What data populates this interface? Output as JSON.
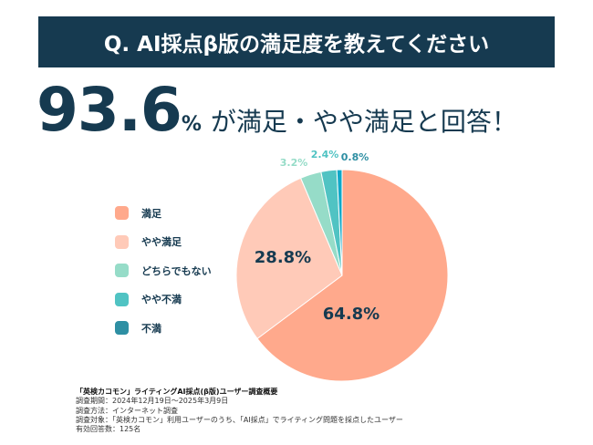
{
  "header": {
    "title": "Q. AI採点β版の満足度を教えてください"
  },
  "headline": {
    "value": "93.6",
    "unit": "%",
    "text": "が満足・やや満足と回答！"
  },
  "chart_data": {
    "type": "pie",
    "start": "top",
    "direction": "clockwise",
    "legend_placement": "left",
    "categories": [
      "満足",
      "やや満足",
      "どちらでもない",
      "やや不満",
      "不満"
    ],
    "values": [
      64.8,
      28.8,
      3.2,
      2.4,
      0.8
    ],
    "labels": [
      "64.8%",
      "28.8%",
      "3.2%",
      "2.4%",
      "0.8%"
    ],
    "colors": [
      "#ffa98c",
      "#ffcab8",
      "#96dcc8",
      "#50c3c3",
      "#0fa8c8"
    ],
    "legend_colors": [
      "#ffa98c",
      "#ffcab8",
      "#96dcc8",
      "#50c3c3",
      "#2e8fa3"
    ]
  },
  "notes": {
    "title": "「英検カコモン」ライティングAI採点(β版)ユーザー調査概要",
    "lines": [
      "調査期間：2024年12月19日〜2025年3月9日",
      "調査方法：インターネット調査",
      "調査対象：「英検カコモン」利用ユーザーのうち、「AI採点」でライティング問題を採点したユーザー",
      "有効回答数：125名"
    ]
  }
}
